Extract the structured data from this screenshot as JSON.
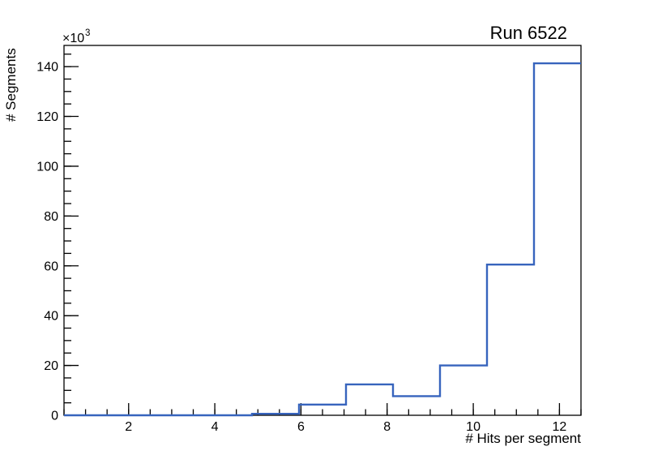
{
  "chart_data": {
    "type": "bar",
    "style": "step-histogram-outline",
    "title": "Run 6522",
    "xlabel": "# Hits per segment",
    "ylabel": "# Segments",
    "y_axis_exponent": {
      "base": "×10",
      "power": "3"
    },
    "bin_edges": [
      0.5,
      1.591,
      2.682,
      3.773,
      4.864,
      5.955,
      7.045,
      8.136,
      9.227,
      10.318,
      11.409,
      12.5
    ],
    "counts": [
      0,
      0,
      0,
      0,
      600,
      4300,
      12400,
      7700,
      20000,
      60500,
      141300
    ],
    "xlim": [
      0.5,
      12.5
    ],
    "ylim": [
      0,
      148500
    ],
    "x_major_ticks": [
      2,
      4,
      6,
      8,
      10,
      12
    ],
    "x_major_tick_labels": [
      "2",
      "4",
      "6",
      "8",
      "10",
      "12"
    ],
    "x_minor_tick_step": 0.5,
    "y_major_tick_step": 20000,
    "y_major_tick_labels": [
      "0",
      "20",
      "40",
      "60",
      "80",
      "100",
      "120",
      "140"
    ],
    "y_minor_tick_step": 5000,
    "grid": false,
    "legend_position": "none",
    "line_color": "#3764bd",
    "axis_color": "#000000",
    "background_color": "#ffffff"
  }
}
